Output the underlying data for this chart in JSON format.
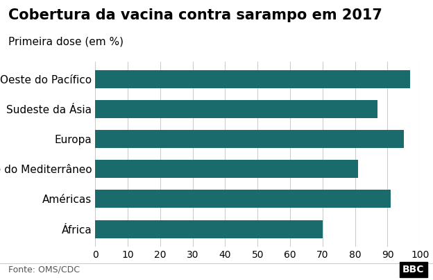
{
  "title": "Cobertura da vacina contra sarampo em 2017",
  "subtitle": "Primeira dose (em %)",
  "categories": [
    "África",
    "Américas",
    "Leste do Mediterrâneo",
    "Europa",
    "Sudeste da Ásia",
    "Oeste do Pacífico"
  ],
  "values": [
    70,
    91,
    81,
    95,
    87,
    97
  ],
  "bar_color": "#1a6b6b",
  "background_color": "#ffffff",
  "xlim": [
    0,
    100
  ],
  "xticks": [
    0,
    10,
    20,
    30,
    40,
    50,
    60,
    70,
    80,
    90,
    100
  ],
  "footer_left": "Fonte: OMS/CDC",
  "footer_right": "BBC",
  "title_fontsize": 15,
  "subtitle_fontsize": 11,
  "tick_fontsize": 10,
  "label_fontsize": 11,
  "footer_fontsize": 9
}
